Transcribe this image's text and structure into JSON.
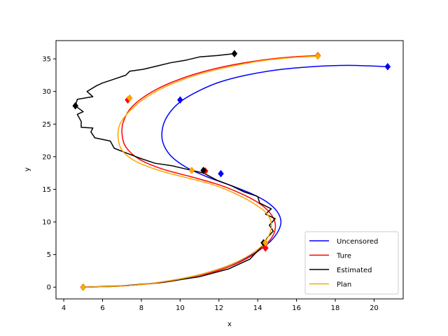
{
  "chart_data": {
    "type": "line",
    "title": "",
    "xlabel": "x",
    "ylabel": "y",
    "xlim": [
      3.6,
      21.5
    ],
    "ylim": [
      -1.8,
      37.8
    ],
    "x_ticks": [
      4,
      6,
      8,
      10,
      12,
      14,
      16,
      18,
      20
    ],
    "y_ticks": [
      0,
      5,
      10,
      15,
      20,
      25,
      30,
      35
    ],
    "grid": false,
    "legend_position": "lower right",
    "series": [
      {
        "name": "Uncensored",
        "color": "#0000ff",
        "points": [
          [
            5.0,
            0.0
          ],
          [
            6.5,
            0.1
          ],
          [
            8.0,
            0.4
          ],
          [
            9.5,
            1.0
          ],
          [
            11.0,
            1.9
          ],
          [
            12.4,
            3.2
          ],
          [
            13.6,
            4.8
          ],
          [
            14.5,
            6.6
          ],
          [
            15.0,
            8.3
          ],
          [
            15.2,
            10.0
          ],
          [
            15.0,
            11.6
          ],
          [
            14.5,
            13.0
          ],
          [
            13.7,
            14.3
          ],
          [
            12.6,
            15.6
          ],
          [
            11.4,
            16.9
          ],
          [
            10.3,
            18.4
          ],
          [
            9.5,
            20.2
          ],
          [
            9.1,
            22.3
          ],
          [
            9.1,
            24.5
          ],
          [
            9.4,
            26.5
          ],
          [
            10.0,
            28.4
          ],
          [
            10.9,
            30.0
          ],
          [
            12.0,
            31.4
          ],
          [
            13.4,
            32.5
          ],
          [
            15.0,
            33.3
          ],
          [
            16.8,
            33.8
          ],
          [
            18.7,
            34.0
          ],
          [
            20.7,
            33.8
          ]
        ],
        "markers": [
          [
            5.0,
            0.0
          ],
          [
            14.4,
            6.0
          ],
          [
            12.1,
            17.4
          ],
          [
            10.0,
            28.7
          ],
          [
            20.7,
            33.8
          ]
        ]
      },
      {
        "name": "Ture",
        "color": "#ff0000",
        "points": [
          [
            5.0,
            0.0
          ],
          [
            6.5,
            0.1
          ],
          [
            8.0,
            0.4
          ],
          [
            9.5,
            0.9
          ],
          [
            11.0,
            1.8
          ],
          [
            12.4,
            3.0
          ],
          [
            13.5,
            4.5
          ],
          [
            14.3,
            6.2
          ],
          [
            14.8,
            8.0
          ],
          [
            14.9,
            9.8
          ],
          [
            14.6,
            11.5
          ],
          [
            14.0,
            13.0
          ],
          [
            13.1,
            14.4
          ],
          [
            12.0,
            15.7
          ],
          [
            10.6,
            16.9
          ],
          [
            9.1,
            18.1
          ],
          [
            7.9,
            19.6
          ],
          [
            7.2,
            21.5
          ],
          [
            7.0,
            23.6
          ],
          [
            7.1,
            25.6
          ],
          [
            7.5,
            27.6
          ],
          [
            8.3,
            29.5
          ],
          [
            9.4,
            31.2
          ],
          [
            10.8,
            32.7
          ],
          [
            12.4,
            33.9
          ],
          [
            14.2,
            34.8
          ],
          [
            15.8,
            35.3
          ],
          [
            17.1,
            35.5
          ]
        ],
        "markers": [
          [
            5.0,
            0.0
          ],
          [
            14.4,
            6.0
          ],
          [
            11.3,
            17.8
          ],
          [
            7.3,
            28.7
          ],
          [
            17.1,
            35.5
          ]
        ]
      },
      {
        "name": "Estimated",
        "color": "#000000",
        "points": [
          [
            5.0,
            0.0
          ],
          [
            7.0,
            0.2
          ],
          [
            9.0,
            0.7
          ],
          [
            11.0,
            1.6
          ],
          [
            12.5,
            2.8
          ],
          [
            13.6,
            4.3
          ],
          [
            14.2,
            6.2
          ],
          [
            14.5,
            7.6
          ],
          [
            14.8,
            8.6
          ],
          [
            14.6,
            9.5
          ],
          [
            14.9,
            10.5
          ],
          [
            14.4,
            11.2
          ],
          [
            14.7,
            12.0
          ],
          [
            14.1,
            12.9
          ],
          [
            14.0,
            13.9
          ],
          [
            13.3,
            14.6
          ],
          [
            12.6,
            15.6
          ],
          [
            11.9,
            16.4
          ],
          [
            11.2,
            17.5
          ],
          [
            10.6,
            17.9
          ],
          [
            9.6,
            18.6
          ],
          [
            8.7,
            19.0
          ],
          [
            7.9,
            19.8
          ],
          [
            7.2,
            20.6
          ],
          [
            6.6,
            21.3
          ],
          [
            6.4,
            22.4
          ],
          [
            5.6,
            22.9
          ],
          [
            5.4,
            23.8
          ],
          [
            5.5,
            24.4
          ],
          [
            4.9,
            24.5
          ],
          [
            4.9,
            25.4
          ],
          [
            4.7,
            26.5
          ],
          [
            5.0,
            26.9
          ],
          [
            4.6,
            27.8
          ],
          [
            4.7,
            28.8
          ],
          [
            5.5,
            29.2
          ],
          [
            5.2,
            30.0
          ],
          [
            5.7,
            30.9
          ],
          [
            6.0,
            31.3
          ],
          [
            6.5,
            31.8
          ],
          [
            7.2,
            32.5
          ],
          [
            7.4,
            33.1
          ],
          [
            8.1,
            33.4
          ],
          [
            8.8,
            33.9
          ],
          [
            9.5,
            34.4
          ],
          [
            10.3,
            34.8
          ],
          [
            11.0,
            35.3
          ],
          [
            11.9,
            35.5
          ],
          [
            12.8,
            35.8
          ]
        ],
        "markers": [
          [
            5.0,
            0.0
          ],
          [
            14.3,
            6.8
          ],
          [
            11.2,
            17.9
          ],
          [
            4.6,
            27.8
          ],
          [
            12.8,
            35.8
          ]
        ]
      },
      {
        "name": "Plan",
        "color": "#ffa500",
        "points": [
          [
            5.0,
            0.0
          ],
          [
            6.5,
            0.1
          ],
          [
            8.0,
            0.4
          ],
          [
            9.5,
            1.0
          ],
          [
            11.0,
            1.9
          ],
          [
            12.3,
            3.1
          ],
          [
            13.4,
            4.6
          ],
          [
            14.2,
            6.3
          ],
          [
            14.6,
            8.1
          ],
          [
            14.7,
            9.8
          ],
          [
            14.4,
            11.5
          ],
          [
            13.7,
            13.0
          ],
          [
            12.8,
            14.4
          ],
          [
            11.7,
            15.7
          ],
          [
            10.3,
            16.8
          ],
          [
            8.9,
            17.9
          ],
          [
            7.7,
            19.3
          ],
          [
            7.0,
            21.0
          ],
          [
            6.8,
            23.0
          ],
          [
            6.9,
            25.0
          ],
          [
            7.4,
            27.0
          ],
          [
            8.2,
            29.0
          ],
          [
            9.3,
            30.8
          ],
          [
            10.7,
            32.4
          ],
          [
            12.4,
            33.7
          ],
          [
            14.2,
            34.7
          ],
          [
            15.8,
            35.2
          ],
          [
            17.1,
            35.4
          ]
        ],
        "markers": [
          [
            5.0,
            0.0
          ],
          [
            14.4,
            6.8
          ],
          [
            10.6,
            17.9
          ],
          [
            7.4,
            29.0
          ],
          [
            17.1,
            35.4
          ]
        ]
      }
    ]
  }
}
